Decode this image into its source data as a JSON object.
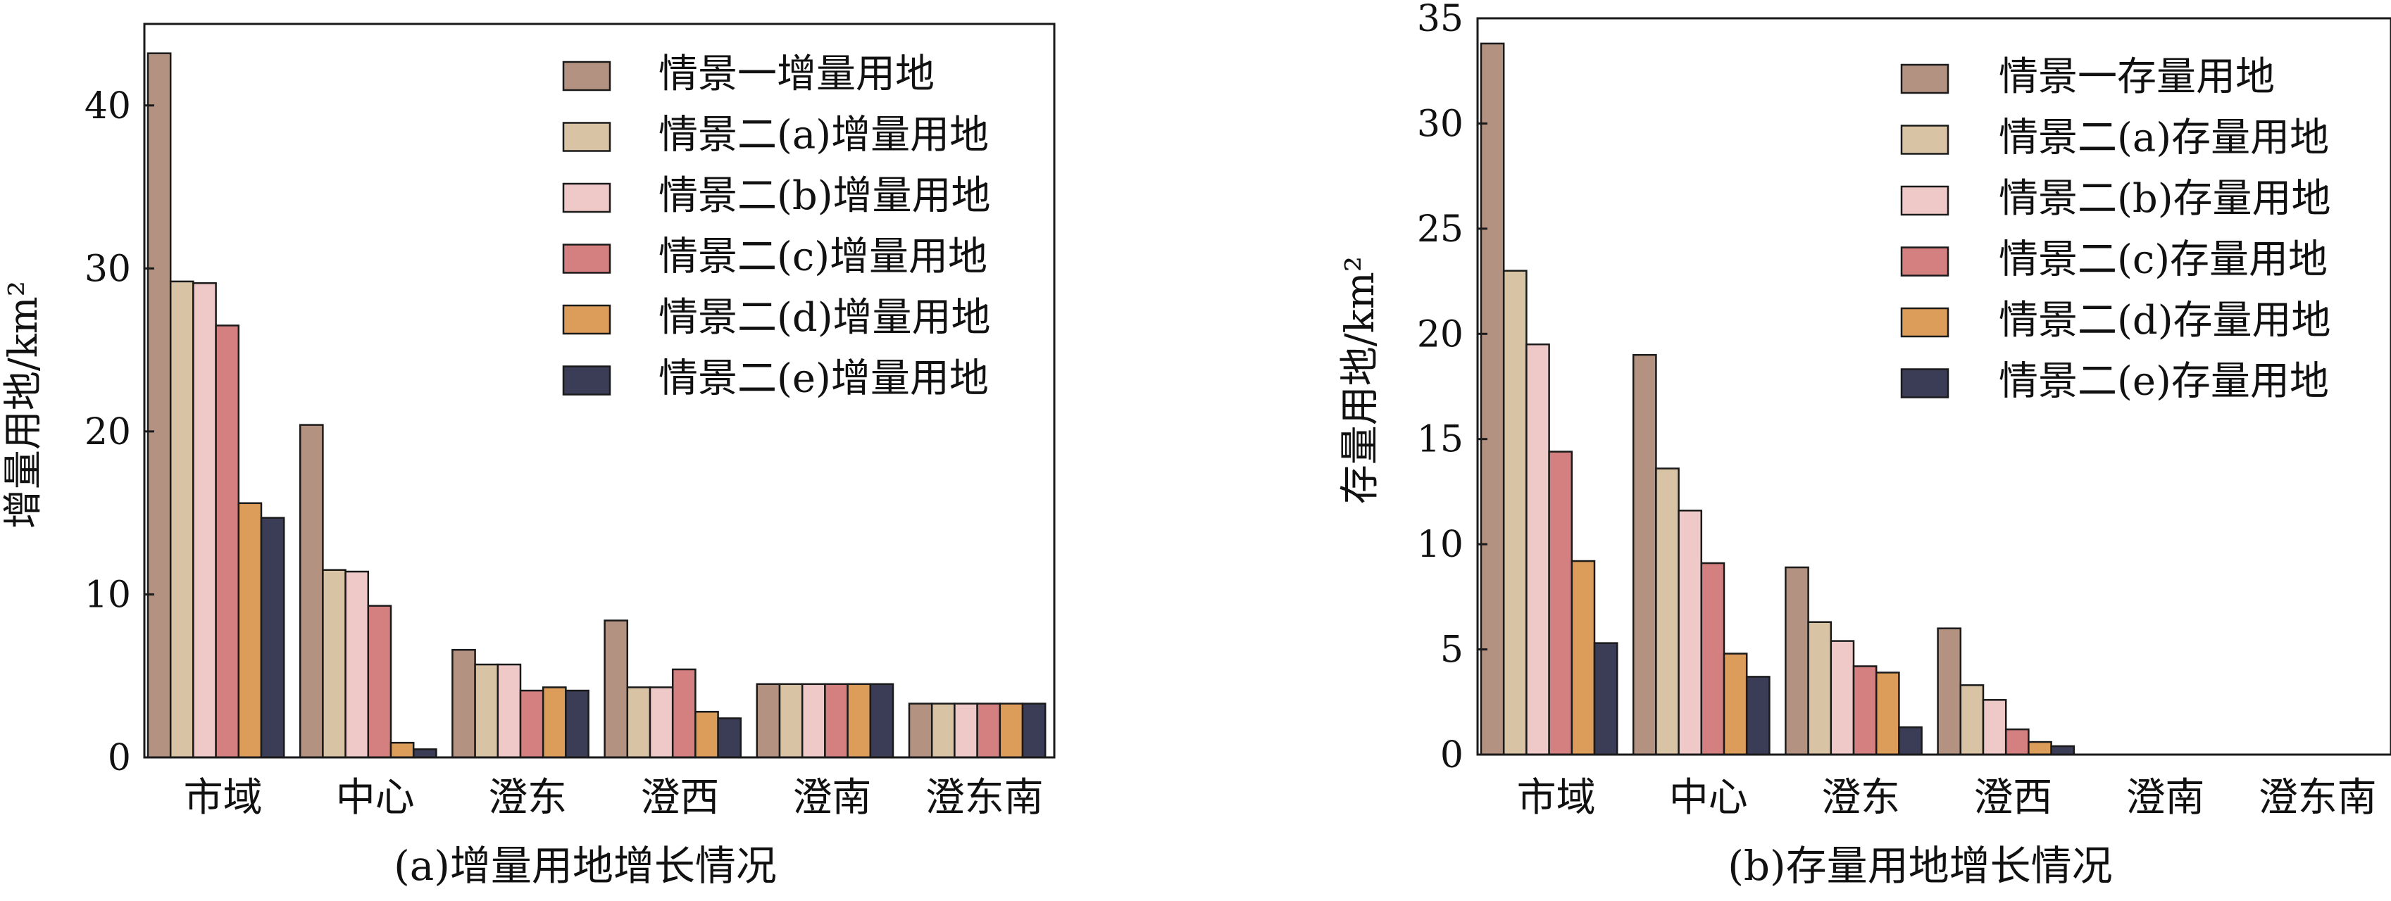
{
  "colors": [
    "#b49282",
    "#d9c3a5",
    "#efc9c8",
    "#d47f80",
    "#dc9c5a",
    "#3b3d56"
  ],
  "chart_data": [
    {
      "type": "bar",
      "caption": "(a)增量用地增长情况",
      "ylabel": "增量用地/km²",
      "xlabel": "",
      "categories": [
        "市域",
        "中心",
        "澄东",
        "澄西",
        "澄南",
        "澄东南"
      ],
      "ylim": [
        0,
        45
      ],
      "yticks": [
        0,
        10,
        20,
        30,
        40
      ],
      "legend_position": "top-right",
      "series": [
        {
          "name": "情景一增量用地",
          "values": [
            43.2,
            20.4,
            6.6,
            8.4,
            4.5,
            3.3
          ]
        },
        {
          "name": "情景二(a)增量用地",
          "values": [
            29.2,
            11.5,
            5.7,
            4.3,
            4.5,
            3.3
          ]
        },
        {
          "name": "情景二(b)增量用地",
          "values": [
            29.1,
            11.4,
            5.7,
            4.3,
            4.5,
            3.3
          ]
        },
        {
          "name": "情景二(c)增量用地",
          "values": [
            26.5,
            9.3,
            4.1,
            5.4,
            4.5,
            3.3
          ]
        },
        {
          "name": "情景二(d)增量用地",
          "values": [
            15.6,
            0.9,
            4.3,
            2.8,
            4.5,
            3.3
          ]
        },
        {
          "name": "情景二(e)增量用地",
          "values": [
            14.7,
            0.5,
            4.1,
            2.4,
            4.5,
            3.3
          ]
        }
      ]
    },
    {
      "type": "bar",
      "caption": "(b)存量用地增长情况",
      "ylabel": "存量用地/km²",
      "xlabel": "",
      "categories": [
        "市域",
        "中心",
        "澄东",
        "澄西",
        "澄南",
        "澄东南"
      ],
      "ylim": [
        0,
        35
      ],
      "yticks": [
        0,
        5,
        10,
        15,
        20,
        25,
        30,
        35
      ],
      "legend_position": "top-right",
      "series": [
        {
          "name": "情景一存量用地",
          "values": [
            33.8,
            19.0,
            8.9,
            6.0,
            0,
            0
          ]
        },
        {
          "name": "情景二(a)存量用地",
          "values": [
            23.0,
            13.6,
            6.3,
            3.3,
            0,
            0
          ]
        },
        {
          "name": "情景二(b)存量用地",
          "values": [
            19.5,
            11.6,
            5.4,
            2.6,
            0,
            0
          ]
        },
        {
          "name": "情景二(c)存量用地",
          "values": [
            14.4,
            9.1,
            4.2,
            1.2,
            0,
            0
          ]
        },
        {
          "name": "情景二(d)存量用地",
          "values": [
            9.2,
            4.8,
            3.9,
            0.6,
            0,
            0
          ]
        },
        {
          "name": "情景二(e)存量用地",
          "values": [
            5.3,
            3.7,
            1.3,
            0.4,
            0,
            0
          ]
        }
      ]
    }
  ]
}
